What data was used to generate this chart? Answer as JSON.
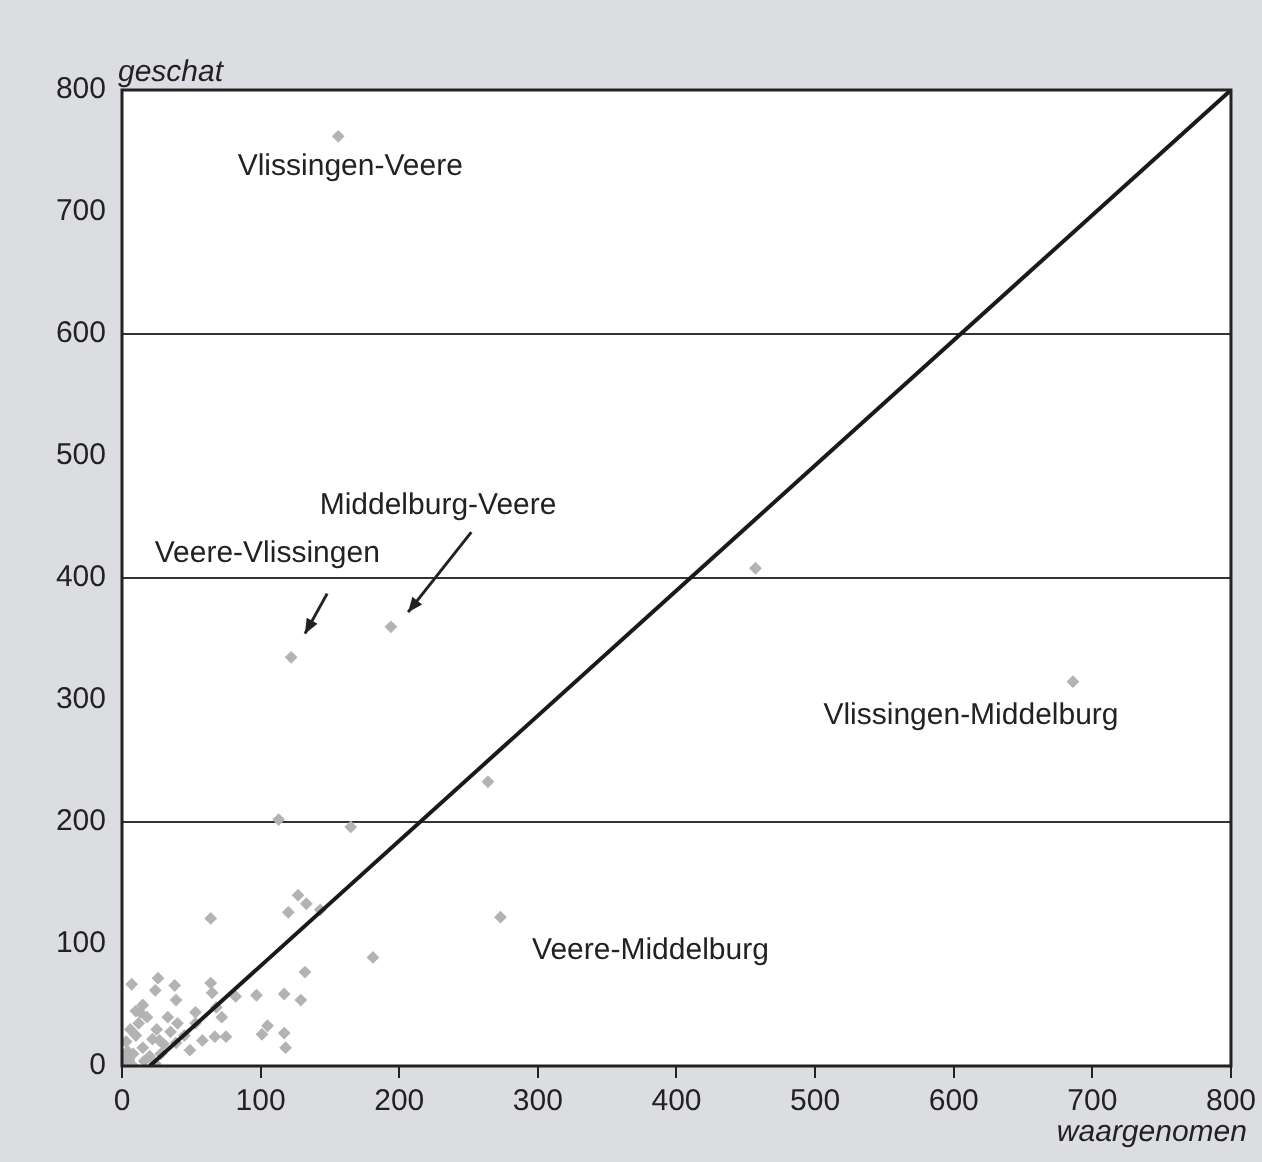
{
  "chart_data": {
    "type": "scatter",
    "xlabel": "waargenomen",
    "ylabel": "geschat",
    "xlim": [
      0,
      800
    ],
    "ylim": [
      0,
      800
    ],
    "xticks": [
      0,
      100,
      200,
      300,
      400,
      500,
      600,
      700,
      800
    ],
    "yticks": [
      0,
      100,
      200,
      300,
      400,
      500,
      600,
      700,
      800
    ],
    "grid": "y",
    "legend": false,
    "series": [
      {
        "marker": "diamond",
        "color": "#b3b3b3",
        "x": [
          156,
          194,
          122,
          457,
          686,
          264,
          273,
          113,
          165,
          127,
          133,
          120,
          143,
          64,
          181,
          132,
          64,
          7,
          26,
          38,
          65,
          97,
          117,
          129,
          82,
          39,
          24,
          13,
          53,
          68,
          72,
          53,
          105,
          101,
          117,
          75,
          67,
          118,
          58,
          49,
          39,
          27,
          5,
          8,
          3,
          10,
          15,
          20,
          25,
          12,
          18,
          30,
          2,
          6,
          22,
          28,
          35,
          40,
          45,
          33,
          15,
          10,
          4,
          16,
          24,
          0,
          8
        ],
        "values": [
          762,
          360,
          335,
          408,
          315,
          233,
          122,
          202,
          196,
          140,
          133,
          126,
          128,
          121,
          89,
          77,
          68,
          67,
          72,
          66,
          60,
          58,
          59,
          54,
          57,
          54,
          62,
          44,
          44,
          48,
          40,
          35,
          33,
          26,
          27,
          24,
          24,
          15,
          21,
          13,
          19,
          21,
          5,
          10,
          20,
          25,
          15,
          8,
          30,
          35,
          40,
          18,
          2,
          30,
          22,
          10,
          28,
          35,
          25,
          40,
          50,
          45,
          12,
          4,
          2,
          8,
          0
        ]
      },
      {
        "type": "line",
        "color": "#1a1a1a",
        "x": [
          20,
          800
        ],
        "values": [
          0,
          800
        ]
      }
    ],
    "annotations": [
      {
        "text": "Vlissingen-Veere",
        "x": 156,
        "y": 762
      },
      "Middelburg-Veere",
      "Veere-Vlissingen",
      {
        "text": "Vlissingen-Middelburg",
        "x": 686,
        "y": 315
      },
      {
        "text": "Veere-Middelburg",
        "x": 273,
        "y": 122
      }
    ]
  }
}
